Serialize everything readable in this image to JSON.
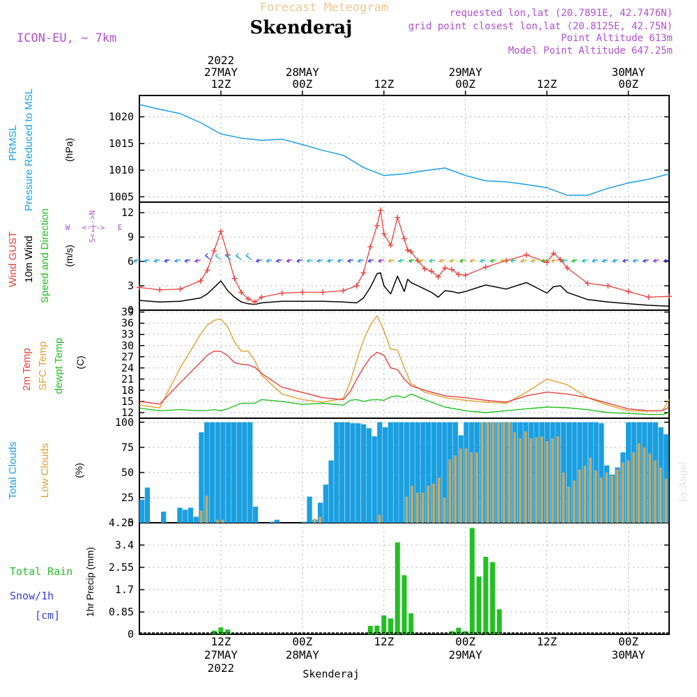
{
  "header": {
    "top_title": "Forecast Meteogram",
    "location": "Skenderaj",
    "model": "ICON-EU, ~ 7km",
    "requested": "requested lon,lat (20.7891E, 42.7476N)",
    "gridpoint": "grid point closest lon,lat (20.8125E, 42.75N)",
    "point_alt": "Point Altitude 613m",
    "model_alt": "Model Point Altitude 647.25m",
    "bottom_location": "Skenderaj",
    "credit": "by Angel"
  },
  "time_axis": {
    "top_labels": [
      {
        "line1": "2022",
        "line2": "27MAY",
        "line3": "12Z"
      },
      {
        "line1": "",
        "line2": "28MAY",
        "line3": "00Z"
      },
      {
        "line1": "",
        "line2": "",
        "line3": "12Z"
      },
      {
        "line1": "",
        "line2": "29MAY",
        "line3": "00Z"
      },
      {
        "line1": "",
        "line2": "",
        "line3": "12Z"
      },
      {
        "line1": "",
        "line2": "30MAY",
        "line3": "00Z"
      }
    ],
    "bottom_labels": [
      {
        "line1": "12Z",
        "line2": "27MAY",
        "line3": "2022"
      },
      {
        "line1": "00Z",
        "line2": "28MAY",
        "line3": ""
      },
      {
        "line1": "12Z",
        "line2": "",
        "line3": ""
      },
      {
        "line1": "00Z",
        "line2": "29MAY",
        "line3": ""
      },
      {
        "line1": "12Z",
        "line2": "",
        "line3": ""
      },
      {
        "line1": "00Z",
        "line2": "30MAY",
        "line3": ""
      }
    ],
    "tick_hours": [
      12,
      24,
      36,
      48,
      60,
      72
    ]
  },
  "panel_labels": {
    "pressure": {
      "l1": "PRMSL",
      "l2": "Pressure Reduced to MSL",
      "unit": "(hPa)"
    },
    "wind": {
      "l1": "Wind GUST",
      "l2": "10m Wind",
      "l3": "Speed and Direction",
      "unit": "(m/s)",
      "compass_ns": "S<-|->N",
      "compass_w": "W",
      "compass_mid": "<-|->",
      "compass_e": "E"
    },
    "temp": {
      "l1": "2m Temp",
      "l2": "SFC Temp",
      "l3": "dewpt Temp",
      "unit": "(C)"
    },
    "clouds": {
      "l1": "Total Clouds",
      "l2": "Low Clouds",
      "unit": "(%)"
    },
    "precip": {
      "l1": "Total  Rain",
      "l2": "Snow/1h",
      "l3": "[cm]",
      "ylabel": "1hr Precip (mm)"
    }
  },
  "colors": {
    "pressure": "#1a9fe0",
    "gust": "#e8403c",
    "wind": "#000000",
    "temp2m": "#e8403c",
    "sfctemp": "#e0a030",
    "dewpt": "#22c022",
    "total_clouds": "#1a9fe0",
    "low_clouds": "#c8a860",
    "rain": "#22c022",
    "snow": "#3a3ae0",
    "meta": "#b050d0",
    "title": "#f0c890"
  },
  "chart_data": [
    {
      "type": "line",
      "name": "pressure",
      "ylim": [
        1004,
        1024
      ],
      "yticks": [
        1005,
        1010,
        1015,
        1020
      ],
      "x": [
        0,
        3,
        6,
        9,
        12,
        15,
        18,
        21,
        24,
        27,
        30,
        33,
        36,
        39,
        42,
        45,
        48,
        51,
        54,
        57,
        60,
        63,
        66,
        69,
        72,
        75,
        78
      ],
      "series": [
        {
          "name": "PRMSL",
          "values": [
            1022.3,
            1021.4,
            1020.6,
            1018.9,
            1016.8,
            1016.0,
            1015.6,
            1015.8,
            1014.8,
            1013.7,
            1012.8,
            1010.5,
            1009.0,
            1009.3,
            1009.9,
            1010.4,
            1009.0,
            1008.0,
            1007.8,
            1007.3,
            1006.7,
            1005.3,
            1005.3,
            1006.6,
            1007.6,
            1008.3,
            1009.3
          ]
        }
      ]
    },
    {
      "type": "line",
      "name": "wind",
      "ylim": [
        0,
        13.3
      ],
      "yticks": [
        0,
        3,
        6,
        9,
        12
      ],
      "x": [
        0,
        3,
        6,
        9,
        10,
        11,
        12,
        13,
        14,
        15,
        16,
        17,
        18,
        21,
        24,
        27,
        30,
        32,
        33,
        34,
        35,
        35.5,
        36,
        37,
        38,
        39,
        39.5,
        40,
        41,
        42,
        43,
        44,
        45,
        46,
        47,
        48,
        51,
        54,
        57,
        60,
        61,
        62,
        63,
        66,
        69,
        72,
        75,
        78
      ],
      "series": [
        {
          "name": "Wind GUST",
          "values": [
            2.8,
            2.5,
            2.6,
            3.6,
            4.9,
            7.3,
            9.7,
            6.8,
            3.9,
            2.2,
            1.4,
            1.0,
            1.6,
            2.1,
            2.2,
            2.2,
            2.4,
            3.0,
            4.6,
            7.8,
            10.4,
            12.3,
            9.4,
            8.0,
            11.4,
            8.8,
            7.4,
            7.2,
            6.1,
            5.1,
            4.8,
            4.1,
            5.2,
            5.0,
            4.4,
            4.3,
            5.3,
            6.1,
            6.8,
            5.9,
            7.0,
            6.2,
            5.2,
            3.3,
            3.0,
            2.3,
            1.6,
            1.7
          ]
        },
        {
          "name": "10m Wind",
          "values": [
            1.2,
            1.0,
            1.1,
            1.5,
            2.0,
            2.8,
            3.6,
            2.4,
            1.6,
            1.0,
            0.8,
            0.7,
            0.9,
            1.1,
            1.1,
            1.1,
            1.0,
            0.9,
            1.5,
            2.8,
            4.5,
            4.6,
            3.0,
            2.0,
            4.2,
            2.3,
            3.8,
            3.4,
            3.0,
            2.6,
            2.2,
            1.6,
            2.4,
            2.3,
            2.1,
            2.3,
            3.1,
            2.6,
            3.4,
            2.1,
            2.9,
            3.0,
            2.2,
            1.3,
            1.0,
            0.8,
            0.6,
            0.5
          ]
        }
      ]
    },
    {
      "type": "line",
      "name": "temperature",
      "ylim": [
        10.5,
        39.5
      ],
      "yticks": [
        12,
        15,
        18,
        21,
        24,
        27,
        30,
        33,
        36,
        39
      ],
      "x": [
        0,
        3,
        6,
        9,
        10,
        11,
        12,
        13,
        14,
        15,
        16,
        17,
        18,
        21,
        24,
        27,
        30,
        31,
        32,
        33,
        34,
        35,
        36,
        37,
        38,
        39,
        40,
        42,
        45,
        48,
        51,
        54,
        57,
        60,
        63,
        66,
        69,
        72,
        75,
        77,
        78
      ],
      "series": [
        {
          "name": "2m Temp",
          "values": [
            15.0,
            14.3,
            20.0,
            25.5,
            27.4,
            28.5,
            28.4,
            27.3,
            25.4,
            25.0,
            24.8,
            24.2,
            22.5,
            18.8,
            17.4,
            16.0,
            15.5,
            17.5,
            21.0,
            24.0,
            26.8,
            28.2,
            27.4,
            24.0,
            23.5,
            21.0,
            19.2,
            18.0,
            16.5,
            16.0,
            15.3,
            14.8,
            16.5,
            17.5,
            17.0,
            16.0,
            14.5,
            13.0,
            12.5,
            12.5,
            13.5
          ]
        },
        {
          "name": "SFC Temp",
          "values": [
            14.0,
            13.3,
            24.0,
            33.0,
            35.5,
            36.8,
            37.1,
            35.0,
            31.0,
            28.5,
            28.5,
            26.0,
            22.0,
            17.0,
            15.5,
            14.8,
            15.8,
            20.0,
            26.0,
            31.5,
            35.5,
            38.0,
            34.0,
            29.0,
            28.8,
            24.0,
            19.8,
            17.5,
            16.0,
            15.3,
            14.8,
            14.5,
            17.5,
            21.0,
            19.5,
            16.0,
            14.0,
            12.5,
            12.4,
            12.5,
            15.5
          ]
        },
        {
          "name": "dewpt Temp",
          "values": [
            13.2,
            12.5,
            12.8,
            12.5,
            12.6,
            12.8,
            12.5,
            13.0,
            13.8,
            14.5,
            14.5,
            14.5,
            15.5,
            15.0,
            14.2,
            14.5,
            14.0,
            15.3,
            15.5,
            15.0,
            15.4,
            15.5,
            15.3,
            16.2,
            16.5,
            16.0,
            17.0,
            15.5,
            13.5,
            12.5,
            12.0,
            12.5,
            13.0,
            13.5,
            13.3,
            12.8,
            12.0,
            11.8,
            11.5,
            11.5,
            12.0
          ]
        }
      ]
    },
    {
      "type": "bar",
      "name": "clouds",
      "ylim": [
        0,
        104
      ],
      "yticks": [
        0,
        25,
        50,
        75,
        100
      ],
      "x_start_hour": 0,
      "step_hours": 1,
      "series": [
        {
          "name": "Total Clouds",
          "values": [
            23,
            35,
            0,
            0,
            11,
            0,
            0,
            15,
            13,
            15,
            6,
            90,
            100,
            100,
            100,
            100,
            100,
            100,
            100,
            100,
            100,
            16,
            0,
            0,
            1,
            3,
            0,
            0,
            0,
            0,
            1,
            26,
            3,
            20,
            38,
            62,
            100,
            100,
            100,
            99,
            99,
            98,
            94,
            86,
            100,
            95,
            100,
            100,
            100,
            100,
            100,
            100,
            100,
            100,
            100,
            100,
            100,
            100,
            100,
            87,
            100,
            100,
            100,
            100,
            100,
            100,
            100,
            100,
            100,
            100,
            100,
            100,
            100,
            100,
            100,
            100,
            100,
            100,
            100,
            100,
            100,
            100,
            100,
            100,
            100,
            99,
            57,
            48,
            55,
            70,
            100,
            100,
            100,
            100,
            100,
            100,
            95,
            88
          ]
        },
        {
          "name": "Low Clouds",
          "values": [
            0,
            0,
            0,
            0,
            0,
            0,
            0,
            0,
            0,
            0,
            0,
            12,
            27,
            0,
            3,
            3,
            0,
            0,
            0,
            0,
            0,
            0,
            0,
            0,
            0,
            0,
            0,
            0,
            0,
            0,
            0,
            0,
            4,
            6,
            0,
            0,
            0,
            0,
            0,
            0,
            0,
            0,
            0,
            0,
            8,
            0,
            0,
            0,
            0,
            26,
            37,
            30,
            30,
            37,
            39,
            45,
            25,
            63,
            67,
            74,
            74,
            70,
            70,
            100,
            100,
            100,
            100,
            100,
            100,
            90,
            84,
            91,
            84,
            85,
            86,
            81,
            84,
            86,
            50,
            36,
            42,
            53,
            57,
            65,
            52,
            45,
            50,
            47,
            53,
            60,
            62,
            70,
            79,
            75,
            69,
            62,
            55,
            44
          ]
        }
      ]
    },
    {
      "type": "bar",
      "name": "precipitation",
      "ylim": [
        0,
        4.25
      ],
      "yticks": [
        0,
        0.85,
        1.7,
        2.55,
        3.4,
        4.25
      ],
      "x": [
        11,
        12,
        13,
        34,
        35,
        36,
        37,
        38,
        39,
        40,
        46,
        47,
        48,
        49,
        50,
        51,
        52,
        53,
        54
      ],
      "series": [
        {
          "name": "Total Rain",
          "values": [
            0.14,
            0.26,
            0.18,
            0.32,
            0.33,
            0.72,
            0.6,
            3.5,
            2.25,
            0.8,
            0.12,
            0.25,
            0.12,
            4.05,
            2.2,
            2.95,
            2.75,
            0.95,
            0
          ]
        }
      ]
    }
  ]
}
